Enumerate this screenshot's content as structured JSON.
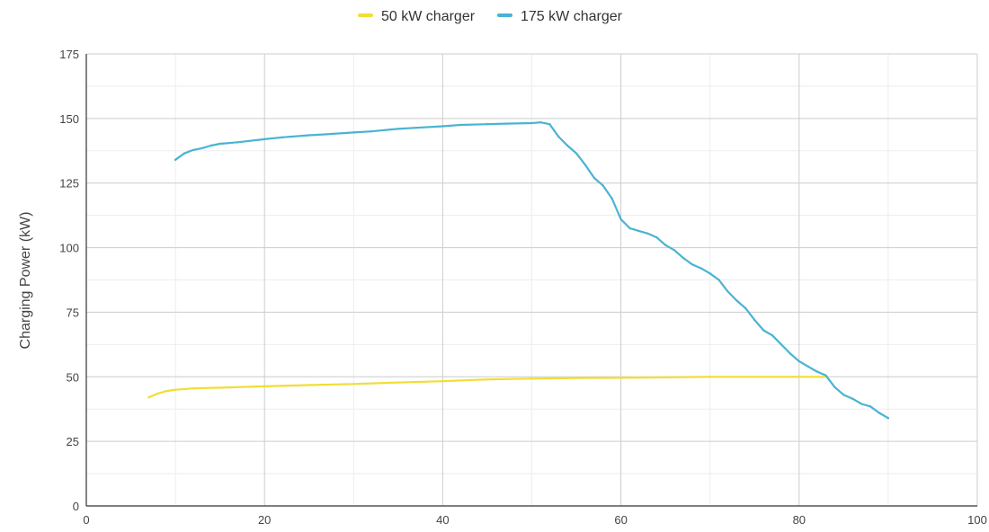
{
  "chart_data": {
    "type": "line",
    "title": "",
    "xlabel": "",
    "ylabel": "Charging Power (kW)",
    "xlim": [
      0,
      100
    ],
    "ylim": [
      0,
      175
    ],
    "x_ticks": [
      0,
      20,
      40,
      60,
      80,
      100
    ],
    "y_ticks": [
      25,
      50,
      75,
      100,
      125,
      150,
      175
    ],
    "grid": true,
    "legend_position": "top-center",
    "series": [
      {
        "name": "50 kW charger",
        "color": "#f2dd36",
        "x": [
          7,
          8,
          9,
          10,
          12,
          15,
          20,
          25,
          30,
          35,
          40,
          45,
          50,
          55,
          60,
          65,
          70,
          75,
          80,
          83
        ],
        "y": [
          42,
          43.5,
          44.5,
          45,
          45.5,
          45.8,
          46.3,
          46.8,
          47.2,
          47.8,
          48.3,
          49,
          49.3,
          49.5,
          49.6,
          49.8,
          50,
          50,
          50,
          50
        ]
      },
      {
        "name": "175 kW charger",
        "color": "#4ab3d3",
        "x": [
          10,
          11,
          12,
          13,
          14,
          15,
          17,
          20,
          22,
          25,
          27,
          30,
          32,
          35,
          37,
          40,
          42,
          45,
          47,
          50,
          51,
          52,
          53,
          54,
          55,
          56,
          57,
          58,
          59,
          60,
          61,
          62,
          63,
          64,
          65,
          66,
          67,
          68,
          69,
          70,
          71,
          72,
          73,
          74,
          75,
          76,
          77,
          78,
          79,
          80,
          81,
          82,
          83,
          84,
          85,
          86,
          87,
          88,
          89,
          90
        ],
        "y": [
          134,
          136.5,
          137.8,
          138.5,
          139.5,
          140.2,
          140.8,
          142,
          142.7,
          143.5,
          143.9,
          144.6,
          145,
          146,
          146.4,
          147,
          147.5,
          147.8,
          148,
          148.2,
          148.5,
          147.8,
          143,
          139.5,
          136.5,
          132,
          127,
          124,
          119,
          111,
          107.5,
          106.5,
          105.5,
          104,
          101,
          99,
          96,
          93.5,
          92,
          90,
          87.5,
          83,
          79.5,
          76.5,
          72,
          68,
          66,
          62.5,
          59,
          56,
          54,
          52,
          50.5,
          46,
          43,
          41.5,
          39.5,
          38.5,
          36,
          34
        ]
      }
    ]
  }
}
